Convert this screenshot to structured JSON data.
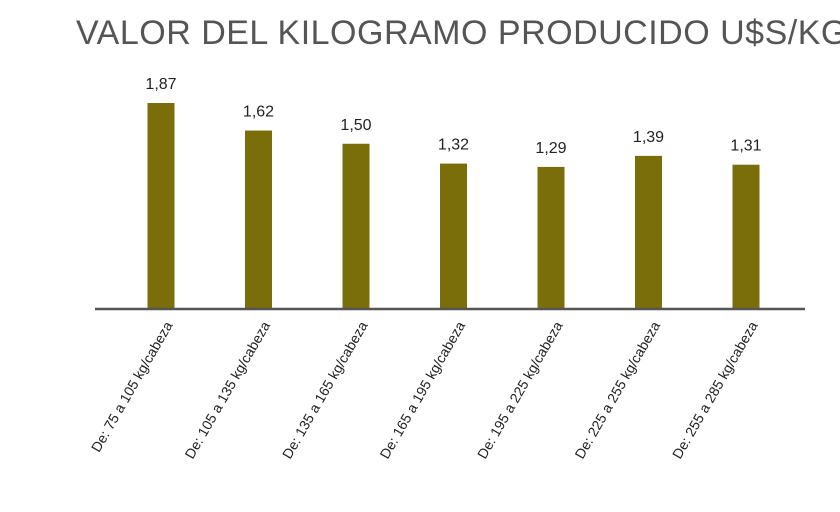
{
  "colors": {
    "bar": "#7a6e0a",
    "axis": "#555555",
    "title": "#555555"
  },
  "chart_data": {
    "type": "bar",
    "title": "VALOR DEL KILOGRAMO PRODUCIDO U$S/KG",
    "categories": [
      "De: 75 a 105 kg/cabeza",
      "De: 105 a 135 kg/cabeza",
      "De: 135 a 165 kg/cabeza",
      "De: 165 a 195 kg/cabeza",
      "De: 195 a 225 kg/cabeza",
      "De: 225 a 255 kg/cabeza",
      "De: 255 a 285 kg/cabeza"
    ],
    "values": [
      1.87,
      1.62,
      1.5,
      1.32,
      1.29,
      1.39,
      1.31
    ],
    "data_labels": [
      "1,87",
      "1,62",
      "1,50",
      "1,32",
      "1,29",
      "1,39",
      "1,31"
    ],
    "xlabel": "",
    "ylabel": "",
    "ylim": [
      0,
      1.87
    ],
    "grid": false,
    "legend": "none"
  }
}
